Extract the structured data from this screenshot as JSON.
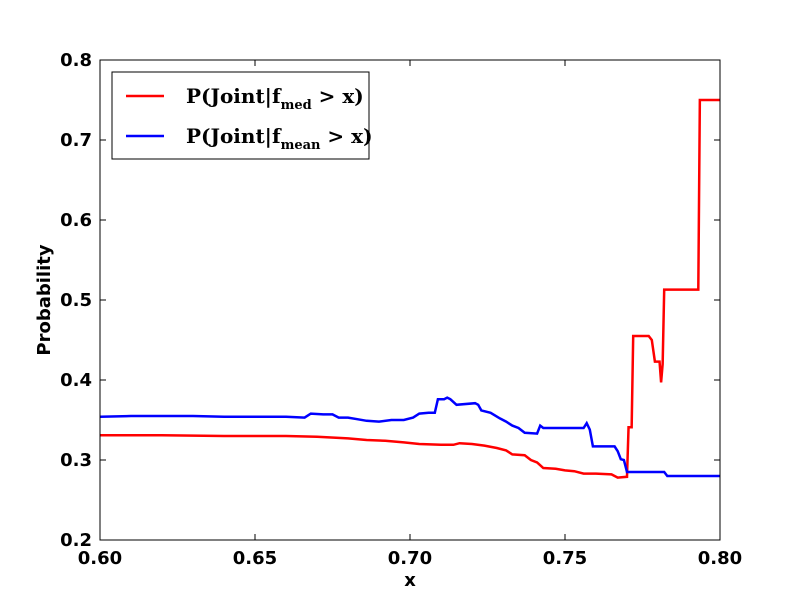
{
  "chart_data": {
    "type": "line",
    "title": "",
    "xlabel": "x",
    "ylabel": "Probability",
    "xlim": [
      0.6,
      0.8
    ],
    "ylim": [
      0.2,
      0.8
    ],
    "xticks": [
      "0.60",
      "0.65",
      "0.70",
      "0.75",
      "0.80"
    ],
    "yticks": [
      "0.2",
      "0.3",
      "0.4",
      "0.5",
      "0.6",
      "0.7",
      "0.8"
    ],
    "grid": false,
    "legend_position": "top-left",
    "series": [
      {
        "name": "P(Joint|f_med > x)",
        "legend_main": "P(Joint|f",
        "legend_sub": "med",
        "legend_tail": " > x)",
        "color": "#ff0000",
        "points": [
          [
            0.6,
            0.331
          ],
          [
            0.62,
            0.331
          ],
          [
            0.64,
            0.33
          ],
          [
            0.66,
            0.33
          ],
          [
            0.67,
            0.329
          ],
          [
            0.68,
            0.327
          ],
          [
            0.686,
            0.325
          ],
          [
            0.692,
            0.324
          ],
          [
            0.698,
            0.322
          ],
          [
            0.703,
            0.32
          ],
          [
            0.71,
            0.319
          ],
          [
            0.714,
            0.319
          ],
          [
            0.716,
            0.321
          ],
          [
            0.72,
            0.32
          ],
          [
            0.724,
            0.318
          ],
          [
            0.728,
            0.315
          ],
          [
            0.731,
            0.312
          ],
          [
            0.733,
            0.307
          ],
          [
            0.737,
            0.306
          ],
          [
            0.739,
            0.3
          ],
          [
            0.741,
            0.297
          ],
          [
            0.743,
            0.29
          ],
          [
            0.747,
            0.289
          ],
          [
            0.75,
            0.287
          ],
          [
            0.753,
            0.286
          ],
          [
            0.756,
            0.283
          ],
          [
            0.76,
            0.283
          ],
          [
            0.765,
            0.282
          ],
          [
            0.767,
            0.278
          ],
          [
            0.77,
            0.279
          ],
          [
            0.7705,
            0.341
          ],
          [
            0.7715,
            0.341
          ],
          [
            0.772,
            0.455
          ],
          [
            0.777,
            0.455
          ],
          [
            0.778,
            0.45
          ],
          [
            0.779,
            0.423
          ],
          [
            0.7805,
            0.423
          ],
          [
            0.781,
            0.397
          ],
          [
            0.7815,
            0.42
          ],
          [
            0.782,
            0.513
          ],
          [
            0.793,
            0.513
          ],
          [
            0.7935,
            0.75
          ],
          [
            0.8,
            0.75
          ]
        ]
      },
      {
        "name": "P(Joint|f_mean > x)",
        "legend_main": "P(Joint|f",
        "legend_sub": "mean",
        "legend_tail": " > x)",
        "color": "#0000ff",
        "points": [
          [
            0.6,
            0.354
          ],
          [
            0.61,
            0.355
          ],
          [
            0.63,
            0.355
          ],
          [
            0.64,
            0.354
          ],
          [
            0.66,
            0.354
          ],
          [
            0.666,
            0.353
          ],
          [
            0.668,
            0.358
          ],
          [
            0.672,
            0.357
          ],
          [
            0.675,
            0.357
          ],
          [
            0.677,
            0.353
          ],
          [
            0.68,
            0.353
          ],
          [
            0.683,
            0.351
          ],
          [
            0.686,
            0.349
          ],
          [
            0.69,
            0.348
          ],
          [
            0.694,
            0.35
          ],
          [
            0.698,
            0.35
          ],
          [
            0.701,
            0.353
          ],
          [
            0.703,
            0.358
          ],
          [
            0.706,
            0.359
          ],
          [
            0.708,
            0.359
          ],
          [
            0.709,
            0.376
          ],
          [
            0.711,
            0.376
          ],
          [
            0.712,
            0.378
          ],
          [
            0.713,
            0.376
          ],
          [
            0.715,
            0.369
          ],
          [
            0.721,
            0.371
          ],
          [
            0.722,
            0.369
          ],
          [
            0.723,
            0.362
          ],
          [
            0.726,
            0.359
          ],
          [
            0.729,
            0.352
          ],
          [
            0.731,
            0.348
          ],
          [
            0.733,
            0.343
          ],
          [
            0.735,
            0.34
          ],
          [
            0.737,
            0.334
          ],
          [
            0.741,
            0.333
          ],
          [
            0.742,
            0.343
          ],
          [
            0.743,
            0.34
          ],
          [
            0.75,
            0.34
          ],
          [
            0.756,
            0.34
          ],
          [
            0.757,
            0.346
          ],
          [
            0.758,
            0.338
          ],
          [
            0.759,
            0.317
          ],
          [
            0.766,
            0.317
          ],
          [
            0.767,
            0.311
          ],
          [
            0.768,
            0.301
          ],
          [
            0.769,
            0.3
          ],
          [
            0.77,
            0.285
          ],
          [
            0.782,
            0.285
          ],
          [
            0.783,
            0.28
          ],
          [
            0.8,
            0.28
          ]
        ]
      }
    ]
  }
}
